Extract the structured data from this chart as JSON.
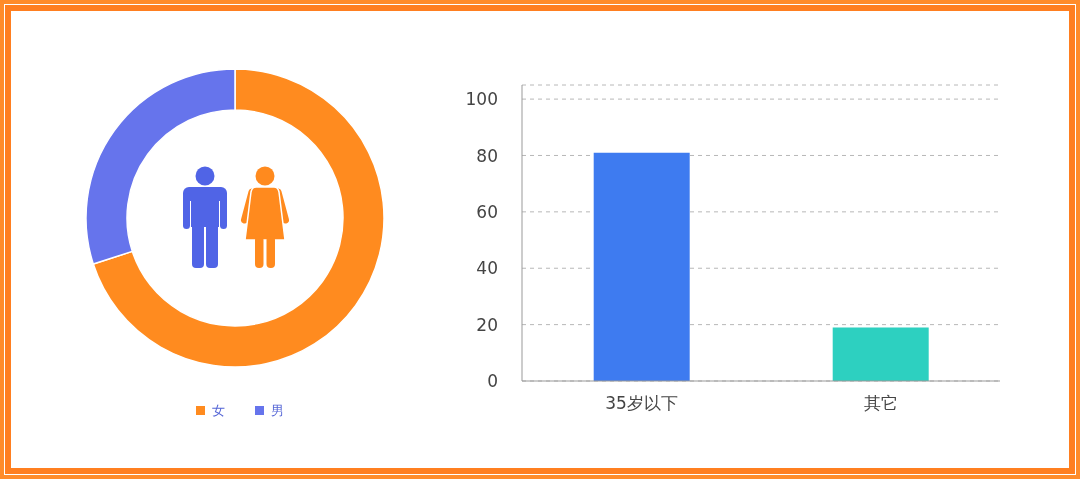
{
  "chart_data": [
    {
      "type": "donut",
      "categories": [
        "女",
        "男"
      ],
      "values": [
        70,
        30
      ],
      "colors": [
        "#ff8b1f",
        "#6674ec"
      ],
      "legend": "bottom"
    },
    {
      "type": "bar",
      "categories": [
        "35岁以下",
        "其它"
      ],
      "values": [
        81,
        19
      ],
      "colors": [
        "#3e7bf0",
        "#2dd0c0"
      ],
      "ylim": [
        0,
        105
      ],
      "yticks": [
        0,
        20,
        40,
        60,
        80,
        100,
        {
          "value": 105,
          "label": null
        }
      ],
      "grid": "y"
    }
  ]
}
